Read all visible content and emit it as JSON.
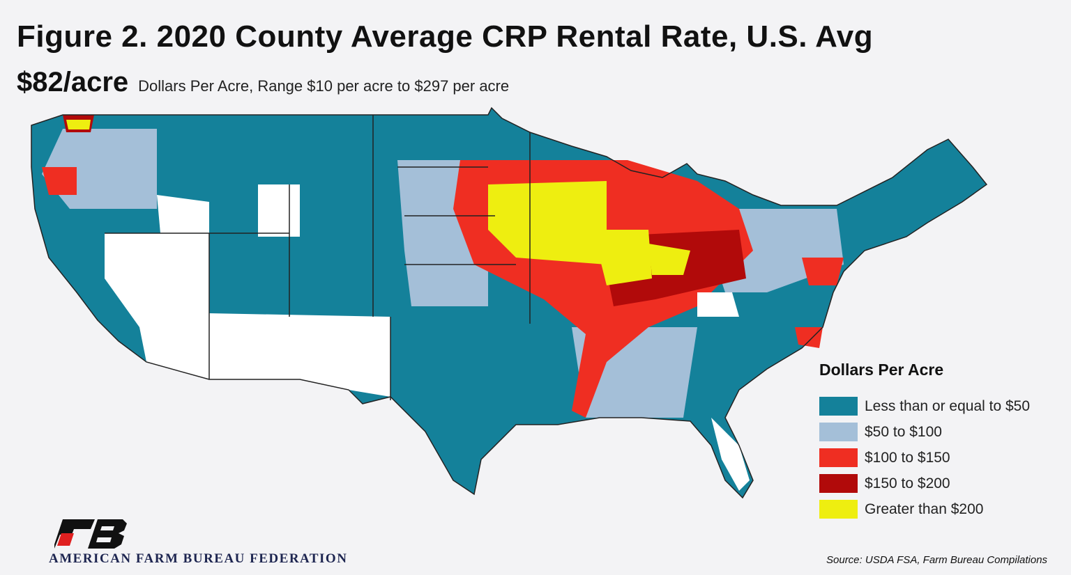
{
  "title": "Figure 2. 2020 County Average CRP Rental Rate, U.S. Avg",
  "subtitle": {
    "average": "$82/acre",
    "description": "Dollars Per Acre, Range $10 per acre to $297 per acre"
  },
  "chart_data": {
    "type": "choropleth-map",
    "region": "Contiguous United States, by county",
    "legend_placement": "bottom-right",
    "legend": {
      "title": "Dollars Per Acre",
      "items": [
        {
          "label": "Less than or equal to $50",
          "color": "#14819a"
        },
        {
          "label": "$50 to $100",
          "color": "#a4bfd8"
        },
        {
          "label": "$100 to $150",
          "color": "#ef2e22"
        },
        {
          "label": "$150 to $200",
          "color": "#b10a0a"
        },
        {
          "label": "Greater than $200",
          "color": "#eeee10"
        }
      ]
    },
    "no_data_color": "#ffffff"
  },
  "footer": {
    "organization": "AMERICAN FARM BUREAU FEDERATION",
    "source": "Source: USDA FSA, Farm Bureau Compilations"
  }
}
